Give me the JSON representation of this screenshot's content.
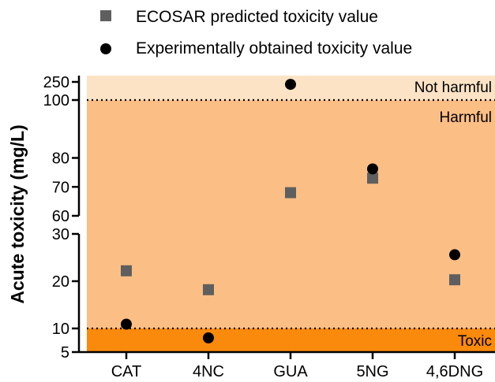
{
  "chart_data": {
    "type": "scatter",
    "ylabel": "Acute toxicity (mg/L)",
    "categories": [
      "CAT",
      "4NC",
      "GUA",
      "5NG",
      "4,6DNG"
    ],
    "series": [
      {
        "name": "ECOSAR predicted toxicity value",
        "marker": "square",
        "color": "#5f5f5f",
        "values": [
          22.2,
          18.2,
          68,
          73,
          20.3
        ]
      },
      {
        "name": "Experimentally obtained toxicity value",
        "marker": "circle",
        "color": "#000000",
        "values": [
          10.9,
          8.0,
          230,
          76.2,
          25.6
        ]
      }
    ],
    "y_axis": {
      "scale": "broken",
      "segments": [
        {
          "range": [
            5,
            30
          ],
          "ticks": [
            5,
            10,
            20,
            30
          ]
        },
        {
          "range": [
            60,
            100
          ],
          "ticks": [
            60,
            70,
            80,
            100
          ]
        },
        {
          "range": [
            100,
            250
          ],
          "ticks": [
            100,
            250
          ]
        }
      ]
    },
    "regions": [
      {
        "label": "Not harmful",
        "from": 100,
        "to": 250,
        "color": "#fce3c6"
      },
      {
        "label": "Harmful",
        "from": 10,
        "to": 100,
        "color": "#fbbe85"
      },
      {
        "label": "Toxic",
        "from": 5,
        "to": 10,
        "color": "#fa8a0b"
      }
    ],
    "thresholds": [
      10,
      100
    ],
    "legend_position": "top"
  }
}
